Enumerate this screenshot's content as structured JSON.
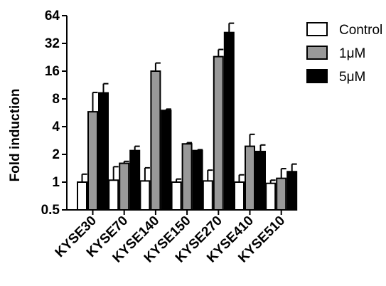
{
  "chart_data": {
    "type": "bar",
    "title": "",
    "xlabel": "",
    "ylabel": "Fold induction",
    "yscale": "log2",
    "ylim": [
      0.5,
      64
    ],
    "yticks": [
      {
        "value": 0.5,
        "label": "0.5"
      },
      {
        "value": 1,
        "label": "1"
      },
      {
        "value": 2,
        "label": "2"
      },
      {
        "value": 4,
        "label": "4"
      },
      {
        "value": 8,
        "label": "8"
      },
      {
        "value": 16,
        "label": "16"
      },
      {
        "value": 32,
        "label": "32"
      },
      {
        "value": 64,
        "label": "64"
      }
    ],
    "categories": [
      "KYSE30",
      "KYSE70",
      "KYSE140",
      "KYSE150",
      "KYSE270",
      "KYSE410",
      "KYSE510"
    ],
    "series": [
      {
        "name": "Control",
        "color": "#ffffff",
        "values": [
          1.0,
          1.05,
          1.03,
          1.0,
          1.03,
          1.0,
          0.97
        ],
        "errors": [
          0.22,
          0.42,
          0.4,
          0.08,
          0.32,
          0.2,
          0.08
        ]
      },
      {
        "name": "1μM",
        "color": "#999999",
        "values": [
          5.8,
          1.6,
          16.0,
          2.6,
          23.0,
          2.45,
          1.1
        ],
        "errors": [
          3.6,
          0.08,
          3.6,
          0.08,
          4.5,
          0.85,
          0.3
        ]
      },
      {
        "name": "5μM",
        "color": "#000000",
        "values": [
          9.3,
          2.2,
          6.0,
          2.2,
          42.0,
          2.15,
          1.3
        ],
        "errors": [
          2.4,
          0.25,
          0.2,
          0.05,
          11.0,
          0.38,
          0.27
        ]
      }
    ],
    "legend": {
      "position": "top-right"
    },
    "grid": false
  }
}
